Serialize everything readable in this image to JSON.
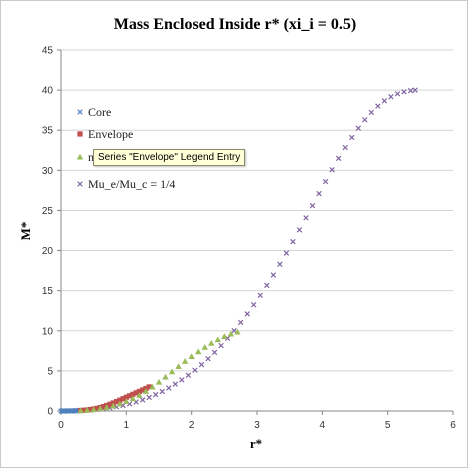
{
  "chart_data": {
    "type": "scatter",
    "title": "Mass Enclosed Inside r* (xi_i = 0.5)",
    "xlabel": "r*",
    "ylabel": "M*",
    "xlim": [
      0,
      6
    ],
    "ylim": [
      0,
      45
    ],
    "xticks": [
      "0",
      "1",
      "2",
      "3",
      "4",
      "5",
      "6"
    ],
    "yticks": [
      "0",
      "5",
      "10",
      "15",
      "20",
      "25",
      "30",
      "35",
      "40",
      "45"
    ],
    "grid": "horizontal",
    "legend_position": "top-left",
    "series": [
      {
        "name": "Core",
        "marker": "x",
        "color": "#4f81bd",
        "x": [
          0.0,
          0.02,
          0.04,
          0.06,
          0.08,
          0.1,
          0.12,
          0.14,
          0.16,
          0.18,
          0.2,
          0.22,
          0.24,
          0.26,
          0.28,
          0.3,
          0.32
        ],
        "y": [
          0,
          0,
          0,
          0,
          0,
          0,
          0.01,
          0.01,
          0.01,
          0.02,
          0.02,
          0.03,
          0.03,
          0.04,
          0.05,
          0.06,
          0.07
        ]
      },
      {
        "name": "Envelope",
        "marker": "square",
        "color": "#c0504d",
        "x": [
          0.3,
          0.35,
          0.4,
          0.45,
          0.5,
          0.55,
          0.6,
          0.65,
          0.7,
          0.75,
          0.8,
          0.85,
          0.9,
          0.95,
          1.0,
          1.05,
          1.1,
          1.15,
          1.2,
          1.25,
          1.3,
          1.35
        ],
        "y": [
          0.06,
          0.09,
          0.13,
          0.18,
          0.25,
          0.33,
          0.43,
          0.55,
          0.69,
          0.84,
          1.0,
          1.17,
          1.35,
          1.53,
          1.72,
          1.9,
          2.08,
          2.26,
          2.44,
          2.62,
          2.8,
          3.0
        ]
      },
      {
        "name": "n",
        "marker": "triangle",
        "color": "#9bbb59",
        "x": [
          0.3,
          0.4,
          0.5,
          0.6,
          0.7,
          0.8,
          0.9,
          1.0,
          1.1,
          1.2,
          1.3,
          1.4,
          1.5,
          1.6,
          1.7,
          1.8,
          1.9,
          2.0,
          2.1,
          2.2,
          2.3,
          2.4,
          2.5,
          2.6,
          2.7
        ],
        "y": [
          0.05,
          0.1,
          0.18,
          0.3,
          0.45,
          0.65,
          0.9,
          1.2,
          1.55,
          1.95,
          2.45,
          3.0,
          3.6,
          4.25,
          4.9,
          5.55,
          6.2,
          6.8,
          7.4,
          7.95,
          8.45,
          8.9,
          9.3,
          9.6,
          9.85
        ]
      },
      {
        "name": "Mu_e/Mu_c = 1/4",
        "marker": "x",
        "color": "#8064a2",
        "x": [
          0.05,
          0.15,
          0.25,
          0.35,
          0.45,
          0.55,
          0.65,
          0.75,
          0.85,
          0.95,
          1.05,
          1.15,
          1.25,
          1.35,
          1.45,
          1.55,
          1.65,
          1.75,
          1.85,
          1.95,
          2.05,
          2.15,
          2.25,
          2.35,
          2.45,
          2.55,
          2.65,
          2.75,
          2.85,
          2.95,
          3.05,
          3.15,
          3.25,
          3.35,
          3.45,
          3.55,
          3.65,
          3.75,
          3.85,
          3.95,
          4.05,
          4.15,
          4.25,
          4.35,
          4.45,
          4.55,
          4.65,
          4.75,
          4.85,
          4.95,
          5.05,
          5.15,
          5.25,
          5.35,
          5.42
        ],
        "y": [
          0.0,
          0.01,
          0.03,
          0.06,
          0.11,
          0.18,
          0.27,
          0.38,
          0.52,
          0.69,
          0.89,
          1.12,
          1.39,
          1.7,
          2.04,
          2.43,
          2.87,
          3.35,
          3.88,
          4.46,
          5.09,
          5.78,
          6.52,
          7.31,
          8.16,
          9.06,
          10.02,
          11.04,
          12.11,
          13.24,
          14.42,
          15.66,
          16.95,
          18.29,
          19.68,
          21.11,
          22.58,
          24.08,
          25.59,
          27.1,
          28.6,
          30.07,
          31.49,
          32.84,
          34.1,
          35.26,
          36.3,
          37.22,
          38.01,
          38.66,
          39.17,
          39.54,
          39.79,
          39.94,
          40.0
        ]
      }
    ]
  },
  "tooltip": {
    "text": "Series \"Envelope\" Legend Entry"
  }
}
